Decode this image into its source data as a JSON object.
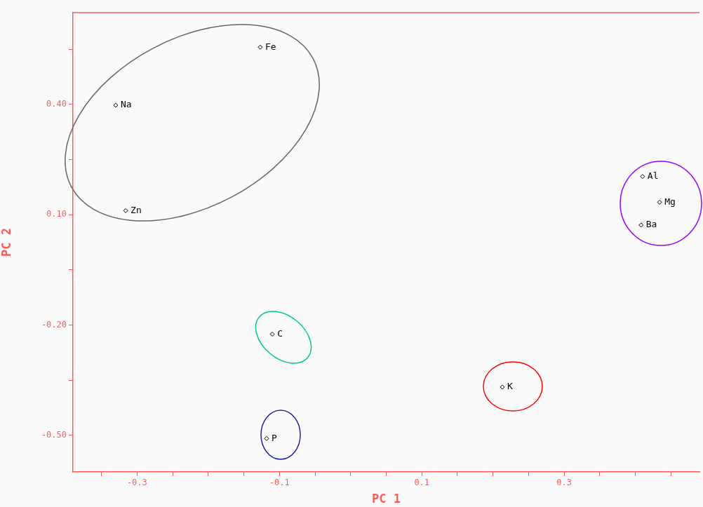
{
  "chart_data": {
    "type": "scatter",
    "xlabel": "PC 1",
    "ylabel": "PC 2",
    "xlim": [
      -0.39,
      0.49
    ],
    "ylim": [
      -0.6,
      0.65
    ],
    "xticks": [
      {
        "value": -0.35,
        "label": null
      },
      -0.3,
      {
        "value": -0.25,
        "label": null
      },
      {
        "value": -0.2,
        "label": null
      },
      {
        "value": -0.15,
        "label": null
      },
      -0.1,
      {
        "value": -0.05,
        "label": null
      },
      {
        "value": 0,
        "label": null
      },
      {
        "value": 0.05,
        "label": null
      },
      0.1,
      {
        "value": 0.15,
        "label": null
      },
      {
        "value": 0.2,
        "label": null
      },
      {
        "value": 0.25,
        "label": null
      },
      0.3,
      {
        "value": 0.35,
        "label": null
      },
      {
        "value": 0.4,
        "label": null
      },
      {
        "value": 0.45,
        "label": null
      }
    ],
    "yticks": [
      {
        "value": -0.5,
        "label": "-0.50"
      },
      {
        "value": -0.35,
        "label": null
      },
      {
        "value": -0.2,
        "label": "-0.20"
      },
      {
        "value": -0.05,
        "label": null
      },
      {
        "value": 0.1,
        "label": "0.10"
      },
      {
        "value": 0.25,
        "label": null
      },
      {
        "value": 0.4,
        "label": "0.40"
      },
      {
        "value": 0.55,
        "label": null
      }
    ],
    "grid": false,
    "legend": false,
    "series": [
      {
        "type": "scatter",
        "color": "#000000",
        "marker": "diamond",
        "x": [
          -0.127,
          -0.33,
          -0.316,
          0.41,
          0.434,
          0.408,
          -0.11,
          0.213,
          -0.118
        ],
        "values": [
          0.556,
          0.398,
          0.111,
          0.204,
          0.134,
          0.072,
          -0.225,
          -0.369,
          -0.509
        ]
      }
    ],
    "annotations": [
      {
        "text": "Fe",
        "x": -0.127,
        "y": 0.556
      },
      {
        "text": "Na",
        "x": -0.33,
        "y": 0.398
      },
      {
        "text": "Zn",
        "x": -0.316,
        "y": 0.111
      },
      {
        "text": "Al",
        "x": 0.41,
        "y": 0.204
      },
      {
        "text": "Mg",
        "x": 0.434,
        "y": 0.134
      },
      {
        "text": "Ba",
        "x": 0.408,
        "y": 0.072
      },
      {
        "text": "C",
        "x": -0.11,
        "y": -0.225
      },
      {
        "text": "K",
        "x": 0.213,
        "y": -0.369
      },
      {
        "text": "P",
        "x": -0.118,
        "y": -0.509
      }
    ]
  }
}
